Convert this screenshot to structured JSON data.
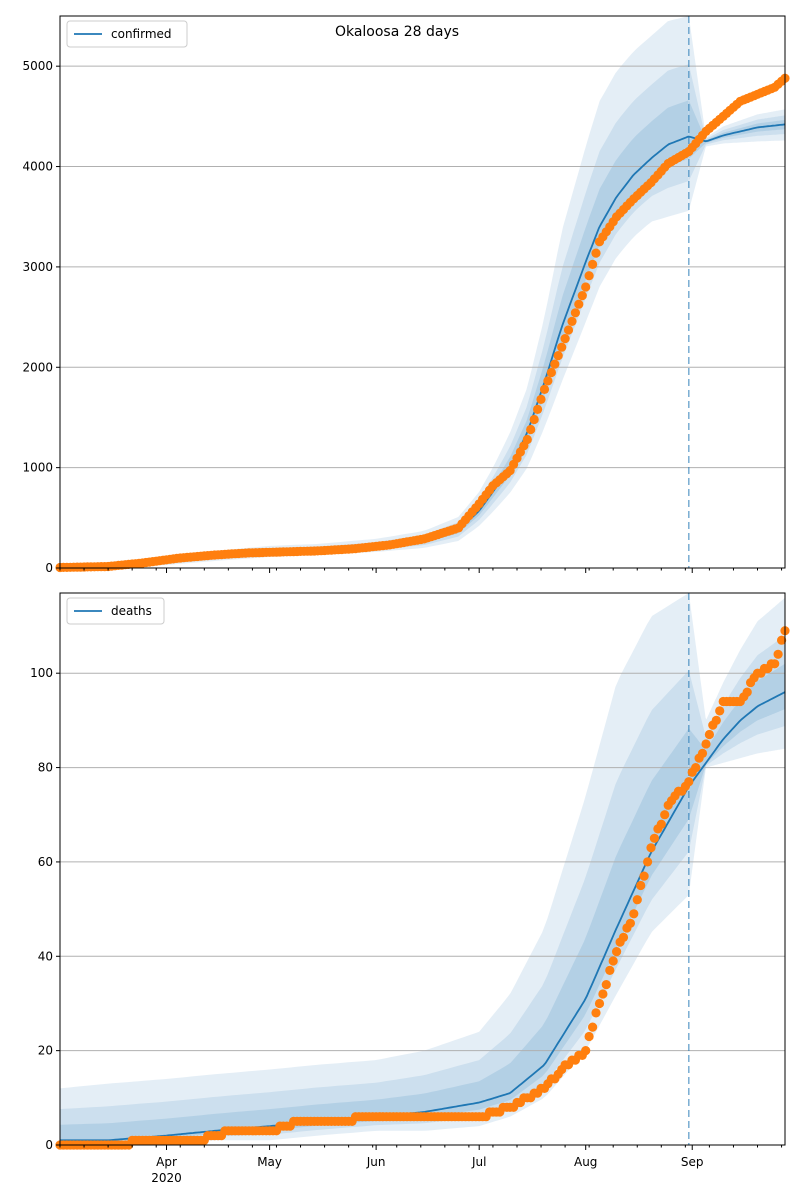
{
  "figure": {
    "title": "Okaloosa 28 days"
  },
  "chart_data": [
    {
      "type": "line",
      "title": "Okaloosa 28 days",
      "xlabel": "",
      "ylabel": "",
      "x_range": [
        "2020-03-01",
        "2020-09-28"
      ],
      "ylim": [
        0,
        5500
      ],
      "y_ticks": [
        0,
        1000,
        2000,
        3000,
        4000,
        5000
      ],
      "x_ticks": [
        {
          "date": "2020-04-01",
          "label": "Apr",
          "sublabel": "2020"
        },
        {
          "date": "2020-05-01",
          "label": "May",
          "sublabel": ""
        },
        {
          "date": "2020-06-01",
          "label": "Jun",
          "sublabel": ""
        },
        {
          "date": "2020-07-01",
          "label": "Jul",
          "sublabel": ""
        },
        {
          "date": "2020-08-01",
          "label": "Aug",
          "sublabel": ""
        },
        {
          "date": "2020-09-01",
          "label": "Sep",
          "sublabel": ""
        }
      ],
      "grid": "horizontal",
      "legend": {
        "placement": "top-left",
        "entries": [
          "confirmed"
        ]
      },
      "forecast_start": "2020-08-31",
      "colors": {
        "model": "#1f77b4",
        "observed": "#ff7f0e",
        "band": "#1f77b4"
      },
      "observed": {
        "x": [
          "2020-03-01",
          "2020-03-15",
          "2020-03-25",
          "2020-04-05",
          "2020-04-15",
          "2020-04-25",
          "2020-05-05",
          "2020-05-15",
          "2020-05-25",
          "2020-06-05",
          "2020-06-15",
          "2020-06-25",
          "2020-07-01",
          "2020-07-05",
          "2020-07-10",
          "2020-07-15",
          "2020-07-20",
          "2020-07-25",
          "2020-08-01",
          "2020-08-05",
          "2020-08-10",
          "2020-08-15",
          "2020-08-20",
          "2020-08-25",
          "2020-08-31",
          "2020-09-05",
          "2020-09-10",
          "2020-09-15",
          "2020-09-20",
          "2020-09-25",
          "2020-09-28"
        ],
        "y": [
          5,
          15,
          50,
          100,
          130,
          150,
          160,
          170,
          190,
          230,
          290,
          400,
          640,
          820,
          970,
          1280,
          1780,
          2200,
          2800,
          3250,
          3500,
          3680,
          3840,
          4030,
          4150,
          4350,
          4500,
          4650,
          4720,
          4790,
          4880
        ]
      },
      "model": {
        "x": [
          "2020-03-01",
          "2020-03-15",
          "2020-04-01",
          "2020-04-15",
          "2020-05-01",
          "2020-05-15",
          "2020-06-01",
          "2020-06-15",
          "2020-06-25",
          "2020-07-01",
          "2020-07-05",
          "2020-07-10",
          "2020-07-15",
          "2020-07-20",
          "2020-07-25",
          "2020-08-01",
          "2020-08-05",
          "2020-08-10",
          "2020-08-15",
          "2020-08-20",
          "2020-08-25",
          "2020-08-31",
          "2020-09-05",
          "2020-09-10",
          "2020-09-15",
          "2020-09-20",
          "2020-09-28"
        ],
        "y": [
          5,
          20,
          60,
          110,
          150,
          170,
          210,
          270,
          380,
          570,
          760,
          1000,
          1350,
          1850,
          2400,
          3050,
          3400,
          3700,
          3920,
          4080,
          4220,
          4300,
          4250,
          4310,
          4350,
          4390,
          4420
        ],
        "band_outer_low": [
          0,
          5,
          30,
          70,
          110,
          130,
          160,
          200,
          270,
          420,
          560,
          750,
          1000,
          1400,
          1850,
          2450,
          2800,
          3100,
          3300,
          3450,
          3500,
          3560,
          4200,
          4230,
          4240,
          4250,
          4260
        ],
        "band_outer_high": [
          20,
          45,
          110,
          170,
          220,
          240,
          290,
          370,
          510,
          760,
          1000,
          1350,
          1800,
          2500,
          3350,
          4200,
          4650,
          4950,
          5150,
          5300,
          5450,
          5500,
          4290,
          4400,
          4460,
          4520,
          4570
        ]
      }
    },
    {
      "type": "line",
      "title": "",
      "xlabel": "",
      "ylabel": "",
      "x_range": [
        "2020-03-01",
        "2020-09-28"
      ],
      "ylim": [
        0,
        117
      ],
      "y_ticks": [
        0,
        20,
        40,
        60,
        80,
        100
      ],
      "x_ticks": [
        {
          "date": "2020-04-01",
          "label": "Apr",
          "sublabel": "2020"
        },
        {
          "date": "2020-05-01",
          "label": "May",
          "sublabel": ""
        },
        {
          "date": "2020-06-01",
          "label": "Jun",
          "sublabel": ""
        },
        {
          "date": "2020-07-01",
          "label": "Jul",
          "sublabel": ""
        },
        {
          "date": "2020-08-01",
          "label": "Aug",
          "sublabel": ""
        },
        {
          "date": "2020-09-01",
          "label": "Sep",
          "sublabel": ""
        }
      ],
      "grid": "horizontal",
      "legend": {
        "placement": "top-left",
        "entries": [
          "deaths"
        ]
      },
      "forecast_start": "2020-08-31",
      "colors": {
        "model": "#1f77b4",
        "observed": "#ff7f0e",
        "band": "#1f77b4"
      },
      "observed": {
        "x": [
          "2020-03-01",
          "2020-03-15",
          "2020-03-28",
          "2020-04-10",
          "2020-04-20",
          "2020-05-01",
          "2020-05-10",
          "2020-05-20",
          "2020-06-01",
          "2020-06-15",
          "2020-06-25",
          "2020-07-01",
          "2020-07-10",
          "2020-07-15",
          "2020-07-20",
          "2020-07-25",
          "2020-08-01",
          "2020-08-05",
          "2020-08-10",
          "2020-08-15",
          "2020-08-20",
          "2020-08-25",
          "2020-08-31",
          "2020-09-05",
          "2020-09-10",
          "2020-09-15",
          "2020-09-20",
          "2020-09-25",
          "2020-09-28"
        ],
        "y": [
          0,
          0,
          1,
          1,
          3,
          3,
          5,
          5,
          6,
          6,
          6,
          6,
          8,
          10,
          12,
          16,
          20,
          30,
          41,
          49,
          63,
          72,
          77,
          85,
          94,
          94,
          100,
          102,
          109
        ]
      },
      "model": {
        "x": [
          "2020-03-01",
          "2020-03-15",
          "2020-04-01",
          "2020-04-15",
          "2020-05-01",
          "2020-05-15",
          "2020-06-01",
          "2020-06-15",
          "2020-07-01",
          "2020-07-10",
          "2020-07-20",
          "2020-08-01",
          "2020-08-10",
          "2020-08-20",
          "2020-08-31",
          "2020-09-05",
          "2020-09-10",
          "2020-09-15",
          "2020-09-20",
          "2020-09-28"
        ],
        "y": [
          1,
          1,
          2,
          3,
          4,
          5,
          6,
          7,
          9,
          11,
          17,
          31,
          46,
          62,
          76,
          81,
          86,
          90,
          93,
          96
        ],
        "band_outer_low": [
          0,
          0,
          0,
          1,
          1,
          2,
          3,
          3,
          4,
          6,
          10,
          20,
          32,
          45,
          53,
          80,
          81,
          82,
          83,
          84
        ],
        "band_outer_high": [
          12,
          13,
          14,
          15,
          16,
          17,
          18,
          20,
          24,
          32,
          46,
          74,
          98,
          112,
          117,
          90,
          98,
          105,
          111,
          116
        ]
      }
    }
  ]
}
